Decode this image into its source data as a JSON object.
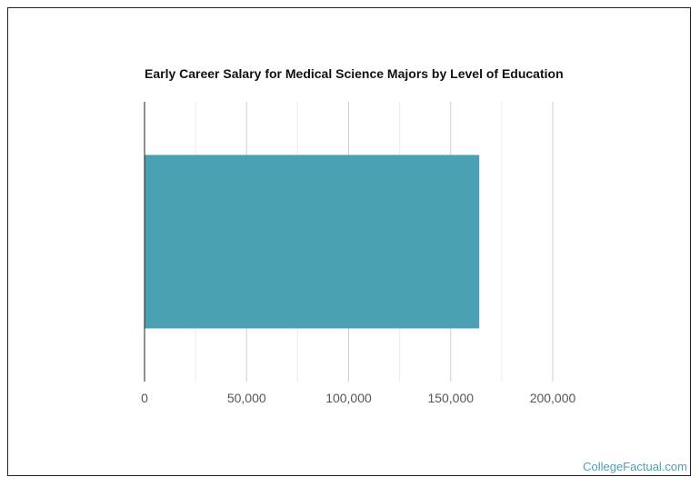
{
  "chart_data": {
    "type": "bar",
    "orientation": "horizontal",
    "title": "Early Career Salary for Medical Science Majors by Level of Education",
    "categories": [
      ""
    ],
    "values": [
      164000
    ],
    "xlim": [
      0,
      200000
    ],
    "xticks": [
      0,
      50000,
      100000,
      150000,
      200000
    ],
    "xtick_labels": [
      "0",
      "50,000",
      "100,000",
      "150,000",
      "200,000"
    ],
    "grid": true,
    "bar_color": "#4aa1b3"
  },
  "credit": "CollegeFactual.com"
}
